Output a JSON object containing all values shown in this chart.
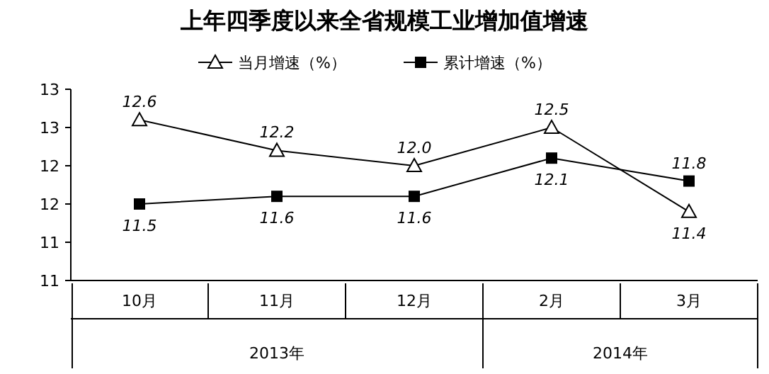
{
  "chart_data": {
    "type": "line",
    "title": "上年四季度以来全省规模工业增加值增速",
    "categories": [
      "10月",
      "11月",
      "12月",
      "2月",
      "3月"
    ],
    "series": [
      {
        "name": "当月增速（%）",
        "color": "#000000",
        "marker": "triangle",
        "values": [
          12.6,
          12.2,
          12.0,
          12.5,
          11.4
        ],
        "value_labels": [
          "12.6",
          "12.2",
          "12.0",
          "12.5",
          "11.4"
        ]
      },
      {
        "name": "累计增速（%）",
        "color": "#000000",
        "marker": "square",
        "values": [
          11.5,
          11.6,
          11.6,
          12.1,
          11.8
        ],
        "value_labels": [
          "11.5",
          "11.6",
          "11.6",
          "12.1",
          "11.8"
        ]
      }
    ],
    "ylim": [
      10.5,
      13.0
    ],
    "yticks": [
      {
        "value": 10.5,
        "label": "11"
      },
      {
        "value": 11.0,
        "label": "11"
      },
      {
        "value": 11.5,
        "label": "12"
      },
      {
        "value": 12.0,
        "label": "12"
      },
      {
        "value": 12.5,
        "label": "13"
      },
      {
        "value": 13.0,
        "label": "13"
      }
    ],
    "legend": "top",
    "grid": false,
    "annotations": [
      "2013年",
      "2014年"
    ]
  }
}
